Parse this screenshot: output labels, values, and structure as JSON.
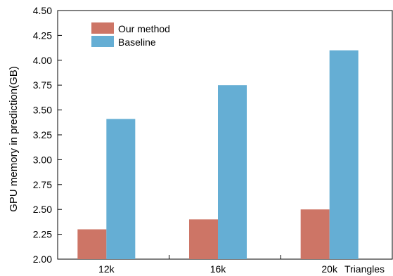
{
  "chart_data": {
    "type": "bar",
    "categories": [
      "12k",
      "16k",
      "20k"
    ],
    "series": [
      {
        "name": "Our method",
        "color": "#cd7566",
        "values": [
          2.3,
          2.4,
          2.5
        ]
      },
      {
        "name": "Baseline",
        "color": "#65aed4",
        "values": [
          3.41,
          3.75,
          4.1
        ]
      }
    ],
    "xlabel": "Triangles",
    "ylabel": "GPU memory in prediction(GB)",
    "ylim": [
      2.0,
      4.5
    ],
    "yticks": [
      "2.00",
      "2.25",
      "2.50",
      "2.75",
      "3.00",
      "3.25",
      "3.50",
      "3.75",
      "4.00",
      "4.25",
      "4.50"
    ],
    "grid": false,
    "legend_position": "top-left"
  }
}
